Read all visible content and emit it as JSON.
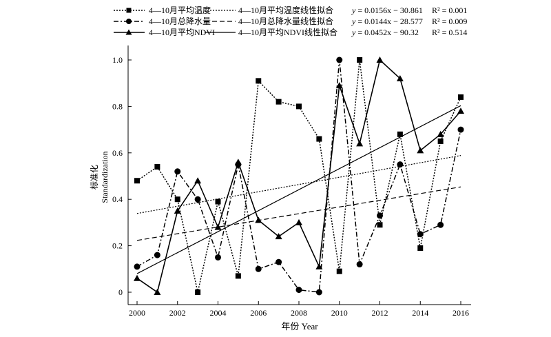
{
  "chart_data": {
    "type": "line",
    "xlabel": "年份 Year",
    "ylabel_cn": "标准化",
    "ylabel_en": "Standardization",
    "xlim": [
      2000,
      2016
    ],
    "ylim": [
      0,
      1.0
    ],
    "x_ticks": [
      2000,
      2002,
      2004,
      2006,
      2008,
      2010,
      2012,
      2014,
      2016
    ],
    "x_tick_labels": [
      "2000",
      "2002",
      "2004",
      "2006",
      "2008",
      "2010",
      "2012",
      "2014",
      "2016"
    ],
    "y_ticks": [
      0,
      0.2,
      0.4,
      0.6,
      0.8,
      1.0
    ],
    "y_tick_labels": [
      "0",
      "0.2",
      "0.4",
      "0.6",
      "0.8",
      "1.0"
    ],
    "x": [
      2000,
      2001,
      2002,
      2003,
      2004,
      2005,
      2006,
      2007,
      2008,
      2009,
      2010,
      2011,
      2012,
      2013,
      2014,
      2015,
      2016
    ],
    "series": [
      {
        "name": "4—10月平均温度",
        "marker": "square",
        "dash": "dotted",
        "values": [
          0.48,
          0.54,
          0.4,
          0.0,
          0.39,
          0.07,
          0.91,
          0.82,
          0.8,
          0.66,
          0.09,
          1.0,
          0.29,
          0.68,
          0.19,
          0.65,
          0.84
        ]
      },
      {
        "name": "4—10月总降水量",
        "marker": "circle",
        "dash": "dashdot",
        "values": [
          0.11,
          0.16,
          0.52,
          0.4,
          0.15,
          0.55,
          0.1,
          0.13,
          0.01,
          0.0,
          1.0,
          0.12,
          0.33,
          0.55,
          0.25,
          0.29,
          0.7
        ]
      },
      {
        "name": "4—10月平均NDVI",
        "marker": "triangle",
        "dash": "solid",
        "values": [
          0.06,
          0.0,
          0.35,
          0.48,
          0.28,
          0.56,
          0.31,
          0.24,
          0.3,
          0.11,
          0.89,
          0.64,
          1.0,
          0.92,
          0.61,
          0.68,
          0.78
        ]
      }
    ],
    "fits": [
      {
        "name": "4—10月平均温度线性拟合",
        "dash": "dotted",
        "slope": 0.0156,
        "intercept": -30.861,
        "equation_lhs": "y",
        "equation_rhs": " = 0.0156x − 30.861",
        "r2_label": "R² = 0.001"
      },
      {
        "name": "4—10月总降水量线性拟合",
        "dash": "dashed",
        "slope": 0.0144,
        "intercept": -28.577,
        "equation_lhs": "y",
        "equation_rhs": " = 0.0144x − 28.577",
        "r2_label": "R² = 0.009"
      },
      {
        "name": "4—10月平均NDVI线性拟合",
        "dash": "solid",
        "slope": 0.0452,
        "intercept": -90.32,
        "equation_lhs": "y",
        "equation_rhs": " = 0.0452x − 90.32",
        "r2_label": "R² = 0.514"
      }
    ],
    "legend_position": "top",
    "grid": false
  },
  "colors": {
    "ink": "#000000",
    "background": "#ffffff"
  }
}
